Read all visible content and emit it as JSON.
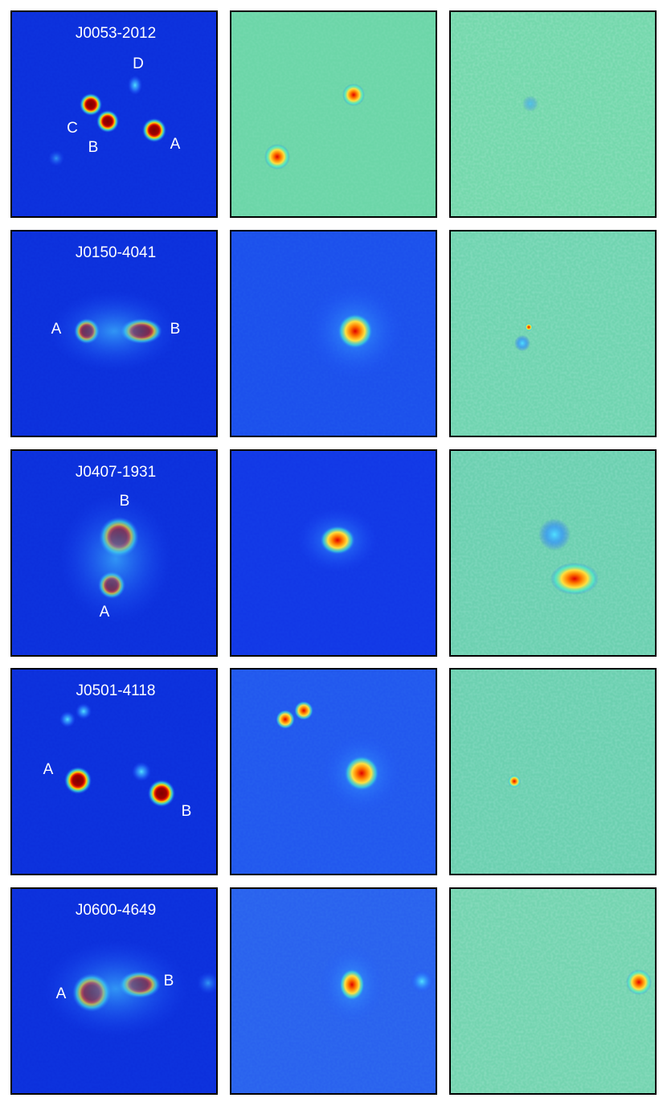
{
  "panels": [
    {
      "name": "J0053-2012",
      "labels": [
        "D",
        "C",
        "B",
        "A"
      ]
    },
    {
      "name": "J0150-4041",
      "labels": [
        "A",
        "B"
      ]
    },
    {
      "name": "J0407-1931",
      "labels": [
        "B",
        "A"
      ]
    },
    {
      "name": "J0501-4118",
      "labels": [
        "A",
        "B"
      ]
    },
    {
      "name": "J0600-4649",
      "labels": [
        "A",
        "B"
      ]
    }
  ]
}
